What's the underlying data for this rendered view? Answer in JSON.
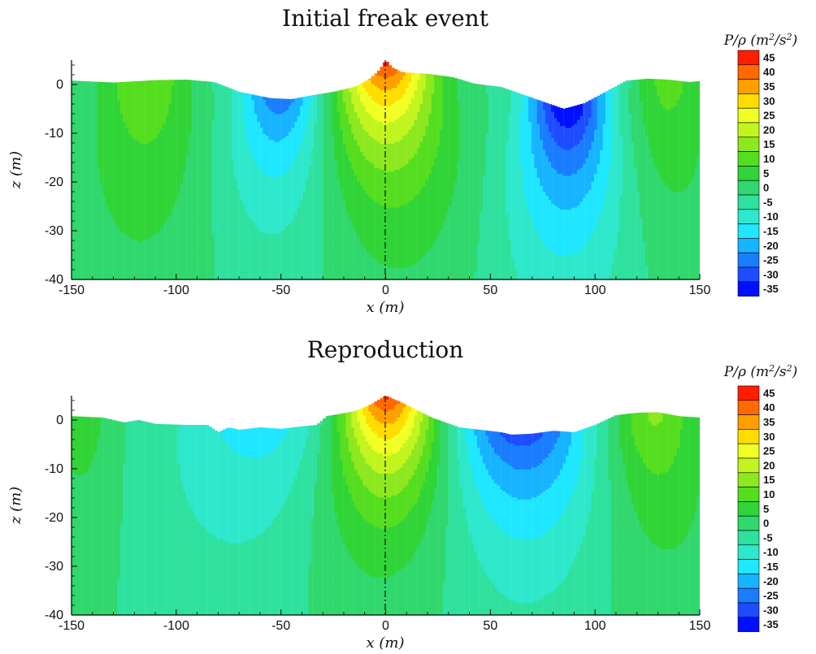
{
  "colorbar": {
    "label_base": "P/ρ (m",
    "label_exp1": "2",
    "label_mid": "/s",
    "label_exp2": "2",
    "label_end": ")",
    "levels": [
      45,
      40,
      35,
      30,
      25,
      20,
      15,
      10,
      5,
      0,
      -5,
      -10,
      -15,
      -20,
      -25,
      -30,
      -35
    ],
    "level_labels": [
      "45",
      "40",
      "35",
      "30",
      "25",
      "20",
      "15",
      "10",
      "5",
      "0",
      "-5",
      "-10",
      "-15",
      "-20",
      "-25",
      "-30",
      "-35"
    ],
    "colors": [
      "#ff1e00",
      "#ff6a00",
      "#ff9f00",
      "#ffdd00",
      "#f1ff24",
      "#c2f51e",
      "#8de81f",
      "#55de1f",
      "#30d437",
      "#30d86d",
      "#2ee19e",
      "#2ee8cc",
      "#1ee7ff",
      "#17b4ff",
      "#1a7dff",
      "#1d4dff",
      "#0010ff"
    ]
  },
  "chart_data": [
    {
      "type": "contour",
      "title": "Initial freak event",
      "xlabel": "x (m)",
      "ylabel": "z (m)",
      "xlim": [
        -150,
        150
      ],
      "ylim": [
        -40,
        5
      ],
      "xticks": [
        -150,
        -100,
        -50,
        0,
        50,
        100,
        150
      ],
      "yticks": [
        0,
        -10,
        -20,
        -30,
        -40
      ],
      "xtick_labels": [
        "-150",
        "-100",
        "-50",
        "0",
        "50",
        "100",
        "150"
      ],
      "ytick_labels": [
        "0",
        "-10",
        "-20",
        "-30",
        "-40"
      ],
      "surface": [
        [
          -150,
          0.8
        ],
        [
          -130,
          0.4
        ],
        [
          -110,
          0.9
        ],
        [
          -95,
          1.0
        ],
        [
          -82,
          0.5
        ],
        [
          -70,
          -1.5
        ],
        [
          -55,
          -2.8
        ],
        [
          -45,
          -3.0
        ],
        [
          -35,
          -2.2
        ],
        [
          -25,
          -1.5
        ],
        [
          -15,
          -0.5
        ],
        [
          -8,
          1.0
        ],
        [
          -3,
          3.0
        ],
        [
          0,
          5.0
        ],
        [
          3,
          3.5
        ],
        [
          8,
          2.5
        ],
        [
          20,
          2.2
        ],
        [
          32,
          1.5
        ],
        [
          42,
          0.2
        ],
        [
          55,
          -0.5
        ],
        [
          65,
          -2.0
        ],
        [
          75,
          -3.5
        ],
        [
          85,
          -5.0
        ],
        [
          95,
          -3.8
        ],
        [
          105,
          -1.5
        ],
        [
          115,
          0.8
        ],
        [
          125,
          1.2
        ],
        [
          135,
          1.0
        ],
        [
          145,
          0.5
        ],
        [
          150,
          0.7
        ]
      ],
      "field_components": [
        {
          "x0": 0,
          "z0": 5,
          "amplitude": 48,
          "sigma_x": 15,
          "decay_depth": 20
        },
        {
          "x0": -50,
          "z0": -3,
          "amplitude": -24,
          "sigma_x": 14,
          "decay_depth": 22
        },
        {
          "x0": 87,
          "z0": -5,
          "amplitude": -35,
          "sigma_x": 14,
          "decay_depth": 25
        },
        {
          "x0": -115,
          "z0": 0,
          "amplitude": 15,
          "sigma_x": 15,
          "decay_depth": 30
        },
        {
          "x0": 135,
          "z0": 0,
          "amplitude": 12,
          "sigma_x": 12,
          "decay_depth": 30
        }
      ],
      "centerline_x": 0
    },
    {
      "type": "contour",
      "title": "Reproduction",
      "xlabel": "x (m)",
      "ylabel": "z (m)",
      "xlim": [
        -150,
        150
      ],
      "ylim": [
        -40,
        5
      ],
      "xticks": [
        -150,
        -100,
        -50,
        0,
        50,
        100,
        150
      ],
      "yticks": [
        0,
        -10,
        -20,
        -30,
        -40
      ],
      "xtick_labels": [
        "-150",
        "-100",
        "-50",
        "0",
        "50",
        "100",
        "150"
      ],
      "ytick_labels": [
        "0",
        "-10",
        "-20",
        "-30",
        "-40"
      ],
      "surface": [
        [
          -150,
          0.8
        ],
        [
          -135,
          0.5
        ],
        [
          -125,
          -0.5
        ],
        [
          -118,
          0.0
        ],
        [
          -110,
          -0.8
        ],
        [
          -95,
          -1.0
        ],
        [
          -85,
          -1.0
        ],
        [
          -80,
          -2.5
        ],
        [
          -75,
          -1.5
        ],
        [
          -70,
          -2.0
        ],
        [
          -60,
          -1.5
        ],
        [
          -50,
          -1.8
        ],
        [
          -40,
          -1.3
        ],
        [
          -33,
          -1.0
        ],
        [
          -28,
          0.8
        ],
        [
          -15,
          1.8
        ],
        [
          -8,
          3.0
        ],
        [
          0,
          5.0
        ],
        [
          8,
          3.5
        ],
        [
          15,
          2.0
        ],
        [
          22,
          0.5
        ],
        [
          35,
          -1.5
        ],
        [
          45,
          -2.0
        ],
        [
          55,
          -2.5
        ],
        [
          60,
          -3.0
        ],
        [
          70,
          -2.8
        ],
        [
          80,
          -2.2
        ],
        [
          90,
          -2.5
        ],
        [
          100,
          -1.0
        ],
        [
          110,
          1.0
        ],
        [
          120,
          1.5
        ],
        [
          130,
          1.6
        ],
        [
          140,
          0.8
        ],
        [
          150,
          0.5
        ]
      ],
      "field_components": [
        {
          "x0": 0,
          "z0": 5,
          "amplitude": 48,
          "sigma_x": 15,
          "decay_depth": 22
        },
        {
          "x0": -60,
          "z0": -1,
          "amplitude": -13,
          "sigma_x": 28,
          "decay_depth": 28
        },
        {
          "x0": 65,
          "z0": -3,
          "amplitude": -28,
          "sigma_x": 22,
          "decay_depth": 22
        },
        {
          "x0": -145,
          "z0": 0,
          "amplitude": 8,
          "sigma_x": 10,
          "decay_depth": 30
        },
        {
          "x0": 128,
          "z0": 0,
          "amplitude": 16,
          "sigma_x": 14,
          "decay_depth": 30
        }
      ],
      "centerline_x": 0
    }
  ]
}
